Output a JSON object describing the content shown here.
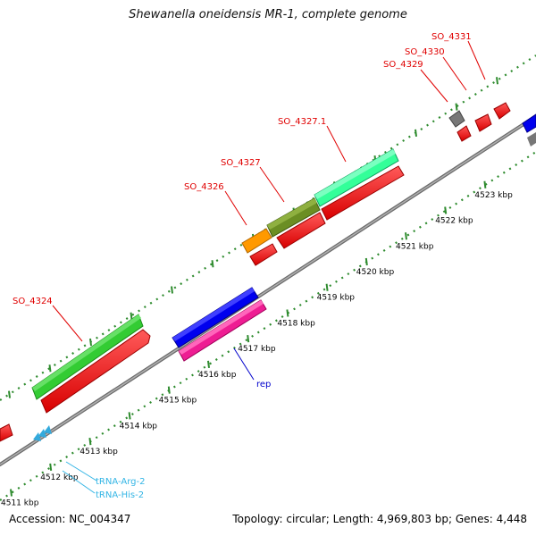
{
  "title": "Shewanella oneidensis MR-1, complete genome",
  "footer": {
    "accession": "Accession: NC_004347",
    "summary": "Topology: circular; Length: 4,969,803 bp; Genes: 4,448"
  },
  "colors": {
    "backbone": "#8f8f8f",
    "ticks": "#2e8b2e",
    "gene_label": "#e00000",
    "repeat_label": "#0000cc",
    "trna_label": "#33b5e5"
  },
  "scale_labels": [
    "4511 kbp",
    "4512 kbp",
    "4513 kbp",
    "4514 kbp",
    "4515 kbp",
    "4516 kbp",
    "4517 kbp",
    "4518 kbp",
    "4519 kbp",
    "4520 kbp",
    "4521 kbp",
    "4522 kbp",
    "4523 kbp"
  ],
  "gene_labels": [
    "SO_4324",
    "SO_4326",
    "SO_4327",
    "SO_4327.1",
    "SO_4329",
    "SO_4330",
    "SO_4331"
  ],
  "feature_labels": {
    "rep": "rep",
    "trna_arg": "tRNA-Arg-2",
    "trna_his": "tRNA-His-2"
  }
}
